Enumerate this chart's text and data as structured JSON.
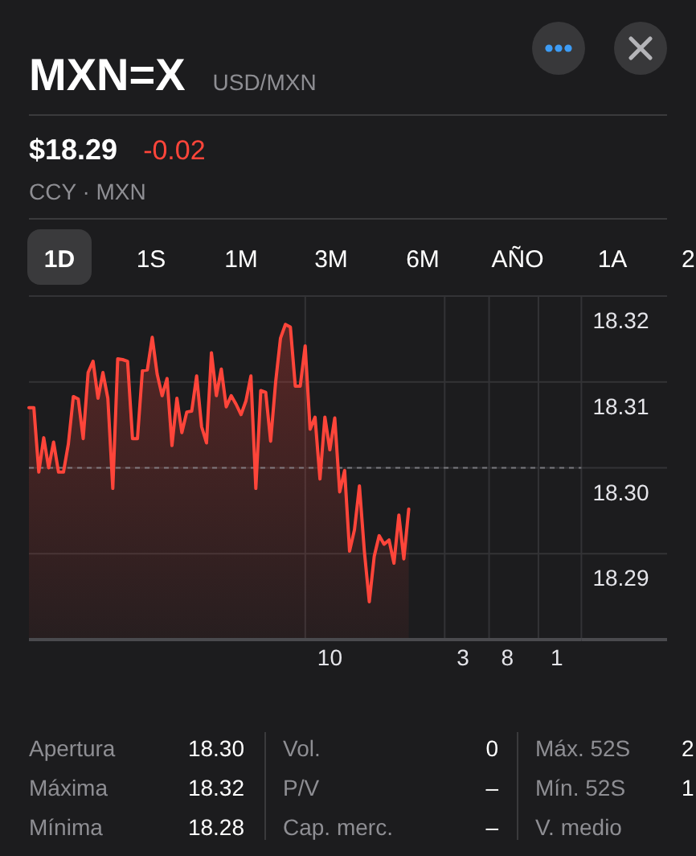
{
  "chart_data": {
    "type": "area",
    "title": "MXN=X",
    "subtitle": "USD/MXN",
    "annotations": [
      "$18.29",
      "-0.02",
      "CCY · MXN",
      "1D",
      "1S",
      "1M",
      "3M",
      "6M",
      "AÑO",
      "1A",
      "2",
      "Apertura",
      "18.30",
      "Máxima",
      "18.32",
      "Mínima",
      "18.28",
      "Vol.",
      "0",
      "P/V",
      "–",
      "Cap. merc.",
      "–",
      "Máx. 52S",
      "2",
      "Mín. 52S",
      "1",
      "V. medio"
    ],
    "categories": [
      null,
      null,
      null,
      null,
      null,
      null,
      null,
      null,
      null,
      null,
      null,
      null,
      null,
      null,
      null,
      null,
      null,
      null,
      null,
      null,
      null,
      null,
      null,
      null,
      null,
      null,
      null,
      null,
      null,
      null,
      null,
      null,
      null,
      null,
      null,
      null,
      null,
      null,
      null,
      null,
      null,
      null,
      null,
      null,
      null,
      null,
      null,
      null,
      null,
      null,
      null,
      null,
      null,
      null,
      null,
      null,
      null,
      null,
      null,
      null,
      null,
      "10",
      null,
      null,
      null,
      null,
      null,
      null,
      null,
      null,
      null,
      null,
      null,
      null,
      null,
      null,
      null,
      null,
      null,
      null,
      null,
      null,
      null,
      null,
      null,
      null,
      null,
      null,
      "3",
      null,
      null,
      null,
      null,
      null,
      null,
      null,
      null,
      "8",
      null,
      null,
      null,
      null,
      null,
      null,
      null,
      null,
      null,
      "1",
      null,
      null,
      null,
      null,
      null
    ],
    "values": [
      18.307,
      18.307,
      18.2995,
      18.3035,
      18.3,
      18.303,
      18.2995,
      18.2995,
      18.3028,
      18.3083,
      18.308,
      18.3034,
      18.3111,
      18.3124,
      18.3081,
      18.3111,
      18.3081,
      18.2976,
      18.3127,
      18.3126,
      18.3124,
      18.3034,
      18.3034,
      18.3113,
      18.3114,
      18.3152,
      18.3109,
      18.3084,
      18.3104,
      18.3026,
      18.3081,
      18.3041,
      18.3065,
      18.3066,
      18.3107,
      18.3048,
      18.3029,
      18.3134,
      18.3084,
      18.3115,
      18.3071,
      18.3084,
      18.3074,
      18.3062,
      18.3078,
      18.3107,
      18.2976,
      18.309,
      18.3088,
      18.3031,
      18.3099,
      18.3151,
      18.3167,
      18.3164,
      18.3095,
      18.3095,
      18.3142,
      18.3045,
      18.3059,
      18.2987,
      18.3059,
      18.3021,
      18.3058,
      18.2972,
      18.2997,
      18.2903,
      18.2928,
      18.2979,
      18.2903,
      18.2844,
      18.2897,
      18.2921,
      18.2911,
      18.2916,
      18.2889,
      18.2945,
      18.2894,
      18.2952,
      null,
      null,
      null,
      null,
      null,
      null,
      null,
      null,
      null,
      null,
      null,
      null,
      null,
      null,
      null,
      null,
      null,
      null,
      null,
      null,
      null,
      null,
      null,
      null,
      null,
      null,
      null,
      null,
      null,
      null,
      null,
      null,
      null,
      null,
      null
    ],
    "color": "#ff453a",
    "ylim": [
      18.28,
      18.32
    ],
    "yticks": [
      18.29,
      {
        "value": 18.3,
        "label": "18.30"
      },
      18.31,
      18.32
    ],
    "grid": true,
    "ref_lines": [
      {
        "axis": "y",
        "value": 18.3,
        "line_style": "dashed"
      }
    ]
  }
}
